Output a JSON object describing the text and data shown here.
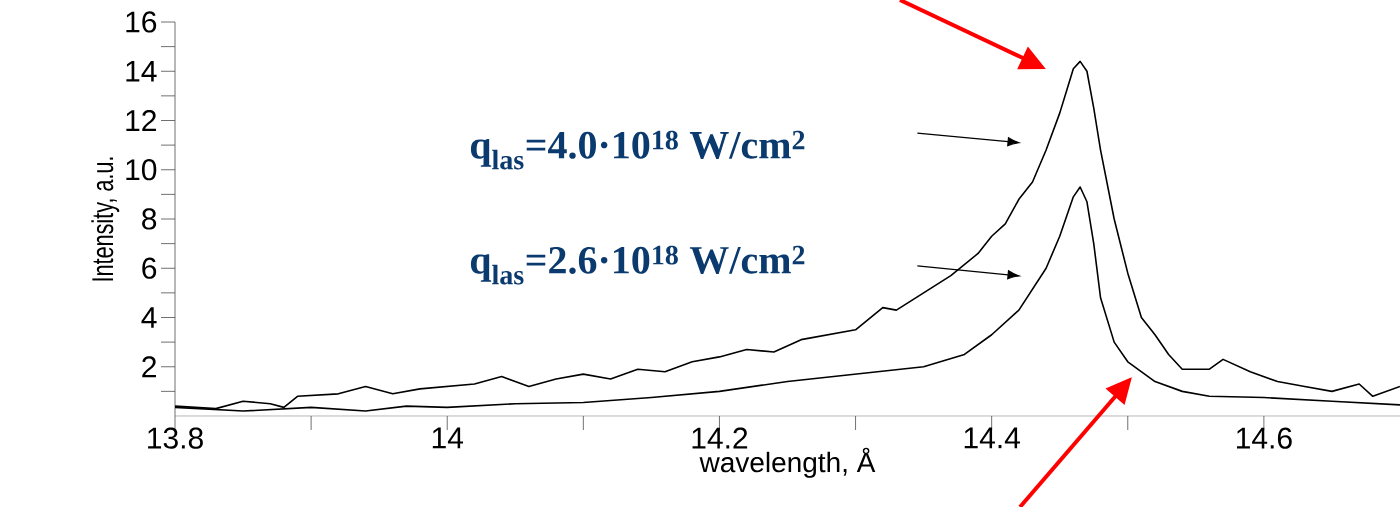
{
  "chart_data": {
    "type": "line",
    "xlabel": "wavelength, Å",
    "ylabel": "Intensity, a.u.",
    "xlim": [
      13.8,
      14.7
    ],
    "ylim": [
      0,
      16
    ],
    "xticks": [
      13.8,
      {
        "value": 13.9,
        "label": null
      },
      14,
      {
        "value": 14.1,
        "label": null
      },
      14.2,
      {
        "value": 14.3,
        "label": null
      },
      14.4,
      {
        "value": 14.5,
        "label": null
      },
      14.6
    ],
    "yticks": [
      {
        "value": 1,
        "label": null
      },
      2,
      {
        "value": 3,
        "label": null
      },
      4,
      {
        "value": 5,
        "label": null
      },
      6,
      {
        "value": 7,
        "label": null
      },
      8,
      {
        "value": 9,
        "label": null
      },
      10,
      {
        "value": 11,
        "label": null
      },
      12,
      {
        "value": 13,
        "label": null
      },
      14,
      {
        "value": 15,
        "label": null
      },
      16
    ],
    "annotations": [
      "q$_{las}$=4.0·10$^{18}$ W/cm$^{2}$",
      "q$_{las}$=2.6·10$^{18}$ W/cm$^{2}$"
    ],
    "series": [
      {
        "color": "#000000",
        "x": [
          13.8,
          13.83,
          13.85,
          13.87,
          13.88,
          13.89,
          13.92,
          13.94,
          13.96,
          13.98,
          14.0,
          14.02,
          14.04,
          14.06,
          14.08,
          14.1,
          14.12,
          14.14,
          14.16,
          14.18,
          14.2,
          14.22,
          14.24,
          14.26,
          14.28,
          14.3,
          14.32,
          14.33,
          14.35,
          14.37,
          14.39,
          14.4,
          14.41,
          14.42,
          14.43,
          14.44,
          14.45,
          14.455,
          14.46,
          14.465,
          14.47,
          14.475,
          14.48,
          14.49,
          14.5,
          14.51,
          14.52,
          14.53,
          14.54,
          14.56,
          14.57,
          14.59,
          14.61,
          14.63,
          14.65,
          14.67,
          14.68,
          14.7
        ],
        "values": [
          0.4,
          0.3,
          0.6,
          0.5,
          0.35,
          0.8,
          0.9,
          1.2,
          0.9,
          1.1,
          1.2,
          1.3,
          1.6,
          1.2,
          1.5,
          1.7,
          1.5,
          1.9,
          1.8,
          2.2,
          2.4,
          2.7,
          2.6,
          3.1,
          3.3,
          3.5,
          4.4,
          4.3,
          5.0,
          5.7,
          6.6,
          7.3,
          7.8,
          8.8,
          9.5,
          10.8,
          12.3,
          13.2,
          14.1,
          14.4,
          14.0,
          12.5,
          10.8,
          8.0,
          5.8,
          4.0,
          3.3,
          2.5,
          1.9,
          1.9,
          2.3,
          1.8,
          1.4,
          1.2,
          1.0,
          1.3,
          0.8,
          1.2
        ]
      },
      {
        "color": "#000000",
        "x": [
          13.8,
          13.85,
          13.9,
          13.94,
          13.97,
          14.0,
          14.05,
          14.1,
          14.15,
          14.2,
          14.25,
          14.3,
          14.35,
          14.38,
          14.4,
          14.42,
          14.44,
          14.45,
          14.46,
          14.465,
          14.47,
          14.475,
          14.48,
          14.49,
          14.5,
          14.52,
          14.54,
          14.56,
          14.6,
          14.65,
          14.7
        ],
        "values": [
          0.35,
          0.2,
          0.35,
          0.2,
          0.4,
          0.35,
          0.5,
          0.55,
          0.75,
          1.0,
          1.4,
          1.7,
          2.0,
          2.5,
          3.3,
          4.3,
          6.0,
          7.3,
          8.9,
          9.3,
          8.7,
          7.0,
          4.8,
          3.0,
          2.2,
          1.4,
          1.0,
          0.8,
          0.75,
          0.6,
          0.45
        ]
      }
    ]
  }
}
